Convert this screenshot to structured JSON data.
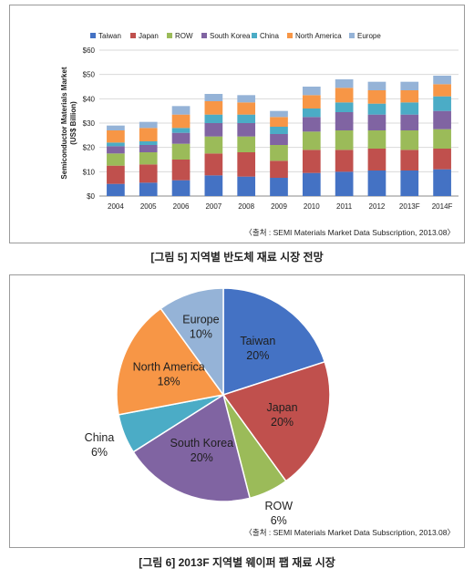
{
  "colors": {
    "Taiwan": "#4472c4",
    "Japan": "#c0504d",
    "ROW": "#9bbb59",
    "South Korea": "#8064a2",
    "China": "#4bacc6",
    "North America": "#f79646",
    "Europe": "#95b3d7"
  },
  "chart_data": [
    {
      "type": "bar",
      "stacked": true,
      "title": "",
      "xlabel": "",
      "ylabel": "Semiconductor Materials Market (US$ Billion)",
      "ylim": [
        0,
        60
      ],
      "yticks": [
        "$0",
        "$10",
        "$20",
        "$30",
        "$40",
        "$50",
        "$60"
      ],
      "grid": true,
      "legend": "top",
      "categories": [
        "2004",
        "2005",
        "2006",
        "2007",
        "2008",
        "2009",
        "2010",
        "2011",
        "2012",
        "2013F",
        "2014F"
      ],
      "series": [
        {
          "name": "Taiwan",
          "values": [
            5,
            5.5,
            6.5,
            8.5,
            8,
            7.5,
            9.5,
            10,
            10.5,
            10.5,
            11
          ]
        },
        {
          "name": "Japan",
          "values": [
            7.5,
            7.5,
            8.5,
            9,
            10,
            7,
            9.5,
            9,
            9,
            8.5,
            8.5
          ]
        },
        {
          "name": "ROW",
          "values": [
            5,
            5,
            6.5,
            7,
            6.5,
            6.5,
            7.5,
            8,
            7.5,
            8,
            8
          ]
        },
        {
          "name": "South Korea",
          "values": [
            3,
            3,
            4.5,
            5.5,
            5.5,
            4.5,
            6,
            7.5,
            6.5,
            6.5,
            7.5
          ]
        },
        {
          "name": "China",
          "values": [
            1.5,
            1.5,
            2,
            3.5,
            3.5,
            3,
            3.5,
            4,
            4.5,
            5,
            6
          ]
        },
        {
          "name": "North America",
          "values": [
            5,
            5.5,
            5.5,
            5.5,
            5,
            4,
            5.5,
            6,
            5.5,
            5,
            5
          ]
        },
        {
          "name": "Europe",
          "values": [
            2,
            2.5,
            3.5,
            3,
            3,
            2.5,
            3.5,
            3.5,
            3.5,
            3.5,
            3.5
          ]
        }
      ]
    },
    {
      "type": "pie",
      "title": "",
      "slices": [
        {
          "name": "Taiwan",
          "value": 20,
          "label": "20%"
        },
        {
          "name": "Japan",
          "value": 20,
          "label": "20%"
        },
        {
          "name": "ROW",
          "value": 6,
          "label": "6%"
        },
        {
          "name": "South Korea",
          "value": 20,
          "label": "20%"
        },
        {
          "name": "China",
          "value": 6,
          "label": "6%"
        },
        {
          "name": "North America",
          "value": 18,
          "label": "18%"
        },
        {
          "name": "Europe",
          "value": 10,
          "label": "10%"
        }
      ]
    }
  ],
  "source1": "〈출처 : SEMI Materials Market Data Subscription, 2013.08〉",
  "source2": "〈출처 : SEMI Materials Market Data Subscription, 2013.08〉",
  "caption1": "[그림 5] 지역별 반도체 재료 시장 전망",
  "caption2": "[그림 6] 2013F 지역별 웨이퍼 팹 재료 시장"
}
